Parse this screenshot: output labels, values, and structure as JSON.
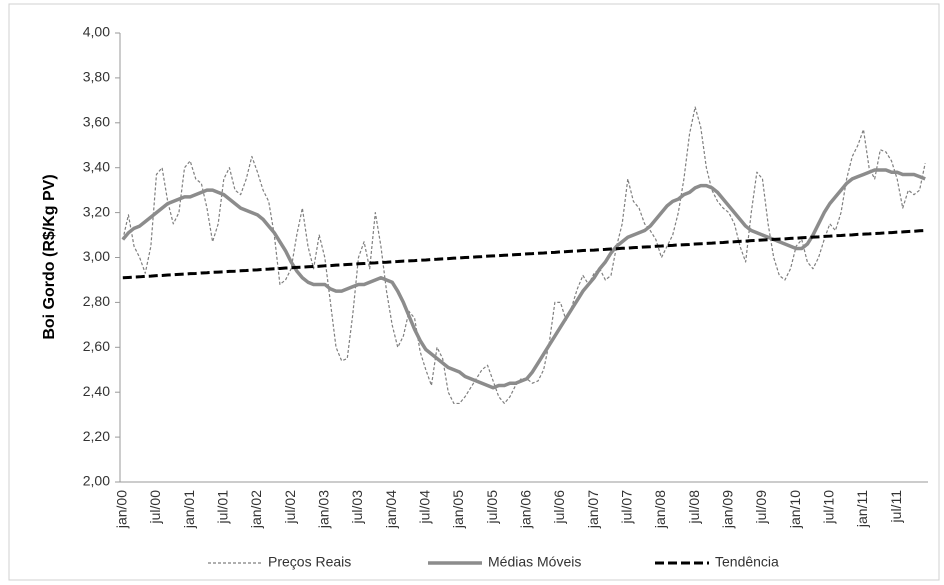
{
  "chart_data": {
    "type": "line",
    "ylabel": "Boi Gordo (R$/Kg PV)",
    "categories": [
      "jan/00",
      null,
      null,
      null,
      null,
      null,
      "jul/00",
      null,
      null,
      null,
      null,
      null,
      "jan/01",
      null,
      null,
      null,
      null,
      null,
      "jul/01",
      null,
      null,
      null,
      null,
      null,
      "jan/02",
      null,
      null,
      null,
      null,
      null,
      "jul/02",
      null,
      null,
      null,
      null,
      null,
      "jan/03",
      null,
      null,
      null,
      null,
      null,
      "jul/03",
      null,
      null,
      null,
      null,
      null,
      "jan/04",
      null,
      null,
      null,
      null,
      null,
      "jul/04",
      null,
      null,
      null,
      null,
      null,
      "jan/05",
      null,
      null,
      null,
      null,
      null,
      "jul/05",
      null,
      null,
      null,
      null,
      null,
      "jan/06",
      null,
      null,
      null,
      null,
      null,
      "jul/06",
      null,
      null,
      null,
      null,
      null,
      "jan/07",
      null,
      null,
      null,
      null,
      null,
      "jul/07",
      null,
      null,
      null,
      null,
      null,
      "jan/08",
      null,
      null,
      null,
      null,
      null,
      "jul/08",
      null,
      null,
      null,
      null,
      null,
      "jan/09",
      null,
      null,
      null,
      null,
      null,
      "jul/09",
      null,
      null,
      null,
      null,
      null,
      "jan/10",
      null,
      null,
      null,
      null,
      null,
      "jul/10",
      null,
      null,
      null,
      null,
      null,
      "jan/11",
      null,
      null,
      null,
      null,
      null,
      "jul/11",
      null,
      null,
      null,
      null,
      null
    ],
    "series": [
      {
        "name": "Preços Reais",
        "color": "#7f7f7f",
        "linestyle": "dotted",
        "values": [
          3.08,
          3.19,
          3.05,
          3.0,
          2.93,
          3.05,
          3.37,
          3.4,
          3.25,
          3.15,
          3.2,
          3.4,
          3.43,
          3.35,
          3.33,
          3.22,
          3.07,
          3.15,
          3.35,
          3.4,
          3.3,
          3.28,
          3.35,
          3.45,
          3.38,
          3.3,
          3.25,
          3.1,
          2.88,
          2.9,
          2.95,
          3.1,
          3.22,
          3.05,
          2.95,
          3.1,
          3.0,
          2.8,
          2.6,
          2.54,
          2.55,
          2.75,
          3.0,
          3.07,
          2.95,
          3.2,
          3.05,
          2.85,
          2.7,
          2.6,
          2.65,
          2.76,
          2.73,
          2.58,
          2.5,
          2.43,
          2.6,
          2.55,
          2.4,
          2.35,
          2.35,
          2.38,
          2.42,
          2.46,
          2.5,
          2.52,
          2.45,
          2.38,
          2.35,
          2.38,
          2.43,
          2.46,
          2.46,
          2.44,
          2.45,
          2.5,
          2.62,
          2.8,
          2.8,
          2.72,
          2.78,
          2.86,
          2.92,
          2.88,
          2.93,
          2.95,
          2.9,
          2.92,
          3.05,
          3.15,
          3.35,
          3.25,
          3.22,
          3.15,
          3.12,
          3.08,
          3.0,
          3.05,
          3.1,
          3.2,
          3.35,
          3.55,
          3.67,
          3.58,
          3.4,
          3.3,
          3.25,
          3.22,
          3.2,
          3.15,
          3.05,
          2.98,
          3.2,
          3.38,
          3.35,
          3.15,
          3.0,
          2.92,
          2.9,
          2.95,
          3.05,
          3.08,
          2.98,
          2.95,
          3.0,
          3.08,
          3.15,
          3.12,
          3.2,
          3.35,
          3.45,
          3.5,
          3.57,
          3.4,
          3.35,
          3.48,
          3.47,
          3.43,
          3.35,
          3.22,
          3.3,
          3.28,
          3.3,
          3.42
        ]
      },
      {
        "name": "Médias Móveis",
        "color": "#8c8c8c",
        "linestyle": "solid",
        "values": [
          3.08,
          3.11,
          3.13,
          3.14,
          3.16,
          3.18,
          3.2,
          3.22,
          3.24,
          3.25,
          3.26,
          3.27,
          3.27,
          3.28,
          3.29,
          3.3,
          3.3,
          3.29,
          3.28,
          3.26,
          3.24,
          3.22,
          3.21,
          3.2,
          3.19,
          3.17,
          3.14,
          3.11,
          3.07,
          3.03,
          2.98,
          2.94,
          2.91,
          2.89,
          2.88,
          2.88,
          2.88,
          2.86,
          2.85,
          2.85,
          2.86,
          2.87,
          2.88,
          2.88,
          2.89,
          2.9,
          2.91,
          2.9,
          2.89,
          2.85,
          2.8,
          2.74,
          2.68,
          2.63,
          2.59,
          2.57,
          2.55,
          2.53,
          2.51,
          2.5,
          2.49,
          2.47,
          2.46,
          2.45,
          2.44,
          2.43,
          2.42,
          2.43,
          2.43,
          2.44,
          2.44,
          2.45,
          2.46,
          2.49,
          2.53,
          2.57,
          2.61,
          2.65,
          2.69,
          2.73,
          2.77,
          2.81,
          2.85,
          2.88,
          2.91,
          2.95,
          2.98,
          3.02,
          3.05,
          3.07,
          3.09,
          3.1,
          3.11,
          3.12,
          3.14,
          3.17,
          3.2,
          3.23,
          3.25,
          3.26,
          3.28,
          3.29,
          3.31,
          3.32,
          3.32,
          3.31,
          3.29,
          3.26,
          3.23,
          3.2,
          3.17,
          3.14,
          3.12,
          3.11,
          3.1,
          3.09,
          3.08,
          3.07,
          3.06,
          3.05,
          3.04,
          3.04,
          3.06,
          3.1,
          3.15,
          3.2,
          3.24,
          3.27,
          3.3,
          3.33,
          3.35,
          3.36,
          3.37,
          3.38,
          3.39,
          3.39,
          3.39,
          3.38,
          3.38,
          3.37,
          3.37,
          3.37,
          3.36,
          3.35
        ]
      },
      {
        "name": "Tendência",
        "color": "#000000",
        "linestyle": "dashed",
        "values": [
          2.91,
          2.911,
          2.913,
          2.914,
          2.916,
          2.917,
          2.919,
          2.92,
          2.922,
          2.923,
          2.925,
          2.926,
          2.928,
          2.929,
          2.931,
          2.932,
          2.934,
          2.935,
          2.936,
          2.938,
          2.939,
          2.941,
          2.942,
          2.944,
          2.945,
          2.947,
          2.948,
          2.95,
          2.951,
          2.953,
          2.954,
          2.956,
          2.957,
          2.959,
          2.96,
          2.961,
          2.963,
          2.964,
          2.966,
          2.967,
          2.969,
          2.97,
          2.972,
          2.973,
          2.975,
          2.976,
          2.978,
          2.979,
          2.981,
          2.982,
          2.984,
          2.985,
          2.986,
          2.988,
          2.989,
          2.991,
          2.992,
          2.994,
          2.995,
          2.997,
          2.998,
          3.0,
          3.001,
          3.003,
          3.004,
          3.006,
          3.007,
          3.008,
          3.01,
          3.011,
          3.013,
          3.014,
          3.016,
          3.017,
          3.019,
          3.02,
          3.022,
          3.023,
          3.025,
          3.026,
          3.028,
          3.029,
          3.031,
          3.032,
          3.033,
          3.035,
          3.036,
          3.038,
          3.039,
          3.041,
          3.042,
          3.044,
          3.045,
          3.047,
          3.048,
          3.05,
          3.051,
          3.053,
          3.054,
          3.056,
          3.057,
          3.058,
          3.06,
          3.061,
          3.063,
          3.064,
          3.066,
          3.067,
          3.069,
          3.07,
          3.072,
          3.073,
          3.075,
          3.076,
          3.078,
          3.079,
          3.081,
          3.082,
          3.083,
          3.085,
          3.086,
          3.088,
          3.089,
          3.091,
          3.092,
          3.094,
          3.095,
          3.097,
          3.098,
          3.1,
          3.101,
          3.103,
          3.104,
          3.105,
          3.107,
          3.108,
          3.11,
          3.111,
          3.113,
          3.114,
          3.116,
          3.117,
          3.119,
          3.12
        ]
      }
    ],
    "ylim": [
      2,
      4
    ],
    "yticks": [
      {
        "value": 2,
        "label": "2,00"
      },
      {
        "value": 2.2,
        "label": "2,20"
      },
      {
        "value": 2.4,
        "label": "2,40"
      },
      {
        "value": 2.6,
        "label": "2,60"
      },
      {
        "value": 2.8,
        "label": "2,80"
      },
      {
        "value": 3,
        "label": "3,00"
      },
      {
        "value": 3.2,
        "label": "3,20"
      },
      {
        "value": 3.4,
        "label": "3,40"
      },
      {
        "value": 3.6,
        "label": "3,60"
      },
      {
        "value": 3.8,
        "label": "3,80"
      },
      {
        "value": 4,
        "label": "4,00"
      }
    ],
    "grid": false,
    "legend": "bottom"
  }
}
